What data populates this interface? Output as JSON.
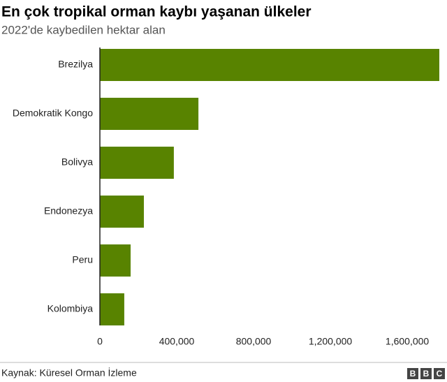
{
  "chart_data": {
    "type": "bar",
    "orientation": "horizontal",
    "title": "En çok tropikal orman kaybı yaşanan ülkeler",
    "subtitle": "2022'de kaybedilen hektar alan",
    "categories": [
      "Brezilya",
      "Demokratik Kongo",
      "Bolivya",
      "Endonezya",
      "Peru",
      "Kolombiya"
    ],
    "values": [
      1767000,
      513000,
      385000,
      229000,
      160000,
      127000
    ],
    "color": "#588300",
    "xlim": [
      0,
      1767000
    ],
    "xticks": [
      0,
      {
        "value": 400000,
        "label": "400,000"
      },
      {
        "value": 800000,
        "label": "800,000"
      },
      {
        "value": 1200000,
        "label": "1,200,000"
      },
      {
        "value": 1600000,
        "label": "1,600,000"
      }
    ],
    "grid": false
  },
  "footer": {
    "source": "Kaynak: Küresel Orman İzleme",
    "logo": [
      "B",
      "B",
      "C"
    ]
  }
}
